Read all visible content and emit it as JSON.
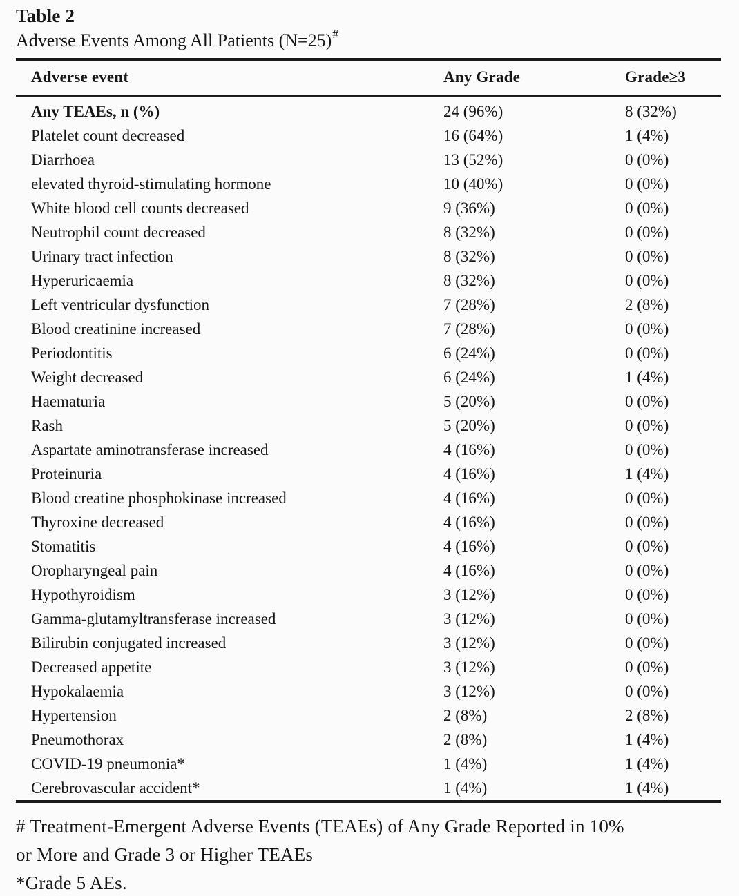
{
  "page": {
    "label": "Table 2",
    "caption": "Adverse Events Among All Patients (N=25)",
    "caption_marker": "#"
  },
  "table": {
    "columns": [
      "Adverse event",
      "Any Grade",
      "Grade≥3"
    ],
    "rows": [
      {
        "event": "Any TEAEs, n (%)",
        "any_grade": "24 (96%)",
        "grade_ge3": "8 (32%)",
        "emphasis": true
      },
      {
        "event": "Platelet count decreased",
        "any_grade": "16 (64%)",
        "grade_ge3": "1 (4%)",
        "emphasis": false
      },
      {
        "event": "Diarrhoea",
        "any_grade": "13 (52%)",
        "grade_ge3": "0 (0%)",
        "emphasis": false
      },
      {
        "event": "elevated thyroid-stimulating hormone",
        "any_grade": "10 (40%)",
        "grade_ge3": "0 (0%)",
        "emphasis": false
      },
      {
        "event": "White blood cell counts decreased",
        "any_grade": "9 (36%)",
        "grade_ge3": "0 (0%)",
        "emphasis": false
      },
      {
        "event": "Neutrophil count decreased",
        "any_grade": "8 (32%)",
        "grade_ge3": "0 (0%)",
        "emphasis": false
      },
      {
        "event": "Urinary tract infection",
        "any_grade": "8 (32%)",
        "grade_ge3": "0 (0%)",
        "emphasis": false
      },
      {
        "event": "Hyperuricaemia",
        "any_grade": "8 (32%)",
        "grade_ge3": "0 (0%)",
        "emphasis": false
      },
      {
        "event": "Left ventricular dysfunction",
        "any_grade": "7 (28%)",
        "grade_ge3": "2 (8%)",
        "emphasis": false
      },
      {
        "event": "Blood creatinine increased",
        "any_grade": "7 (28%)",
        "grade_ge3": "0 (0%)",
        "emphasis": false
      },
      {
        "event": "Periodontitis",
        "any_grade": "6 (24%)",
        "grade_ge3": "0 (0%)",
        "emphasis": false
      },
      {
        "event": "Weight decreased",
        "any_grade": "6 (24%)",
        "grade_ge3": "1 (4%)",
        "emphasis": false
      },
      {
        "event": "Haematuria",
        "any_grade": "5 (20%)",
        "grade_ge3": "0 (0%)",
        "emphasis": false
      },
      {
        "event": "Rash",
        "any_grade": "5 (20%)",
        "grade_ge3": "0 (0%)",
        "emphasis": false
      },
      {
        "event": "Aspartate aminotransferase increased",
        "any_grade": "4 (16%)",
        "grade_ge3": "0 (0%)",
        "emphasis": false
      },
      {
        "event": "Proteinuria",
        "any_grade": "4 (16%)",
        "grade_ge3": "1 (4%)",
        "emphasis": false
      },
      {
        "event": "Blood creatine phosphokinase increased",
        "any_grade": "4 (16%)",
        "grade_ge3": "0 (0%)",
        "emphasis": false
      },
      {
        "event": "Thyroxine decreased",
        "any_grade": "4 (16%)",
        "grade_ge3": "0 (0%)",
        "emphasis": false
      },
      {
        "event": "Stomatitis",
        "any_grade": "4 (16%)",
        "grade_ge3": "0 (0%)",
        "emphasis": false
      },
      {
        "event": "Oropharyngeal pain",
        "any_grade": "4 (16%)",
        "grade_ge3": "0 (0%)",
        "emphasis": false
      },
      {
        "event": "Hypothyroidism",
        "any_grade": "3 (12%)",
        "grade_ge3": "0 (0%)",
        "emphasis": false
      },
      {
        "event": "Gamma-glutamyltransferase increased",
        "any_grade": "3 (12%)",
        "grade_ge3": "0 (0%)",
        "emphasis": false
      },
      {
        "event": "Bilirubin conjugated increased",
        "any_grade": "3 (12%)",
        "grade_ge3": "0 (0%)",
        "emphasis": false
      },
      {
        "event": "Decreased appetite",
        "any_grade": "3 (12%)",
        "grade_ge3": "0 (0%)",
        "emphasis": false
      },
      {
        "event": "Hypokalaemia",
        "any_grade": "3 (12%)",
        "grade_ge3": "0 (0%)",
        "emphasis": false
      },
      {
        "event": "Hypertension",
        "any_grade": "2 (8%)",
        "grade_ge3": "2 (8%)",
        "emphasis": false
      },
      {
        "event": "Pneumothorax",
        "any_grade": "2 (8%)",
        "grade_ge3": "1 (4%)",
        "emphasis": false
      },
      {
        "event": "COVID-19 pneumonia*",
        "any_grade": "1 (4%)",
        "grade_ge3": "1 (4%)",
        "emphasis": false
      },
      {
        "event": "Cerebrovascular accident*",
        "any_grade": "1 (4%)",
        "grade_ge3": "1 (4%)",
        "emphasis": false
      }
    ]
  },
  "footnotes": {
    "lines": [
      "# Treatment-Emergent Adverse Events (TEAEs) of Any Grade Reported in 10%",
      "or More and Grade 3 or Higher TEAEs",
      "*Grade 5 AEs."
    ]
  }
}
